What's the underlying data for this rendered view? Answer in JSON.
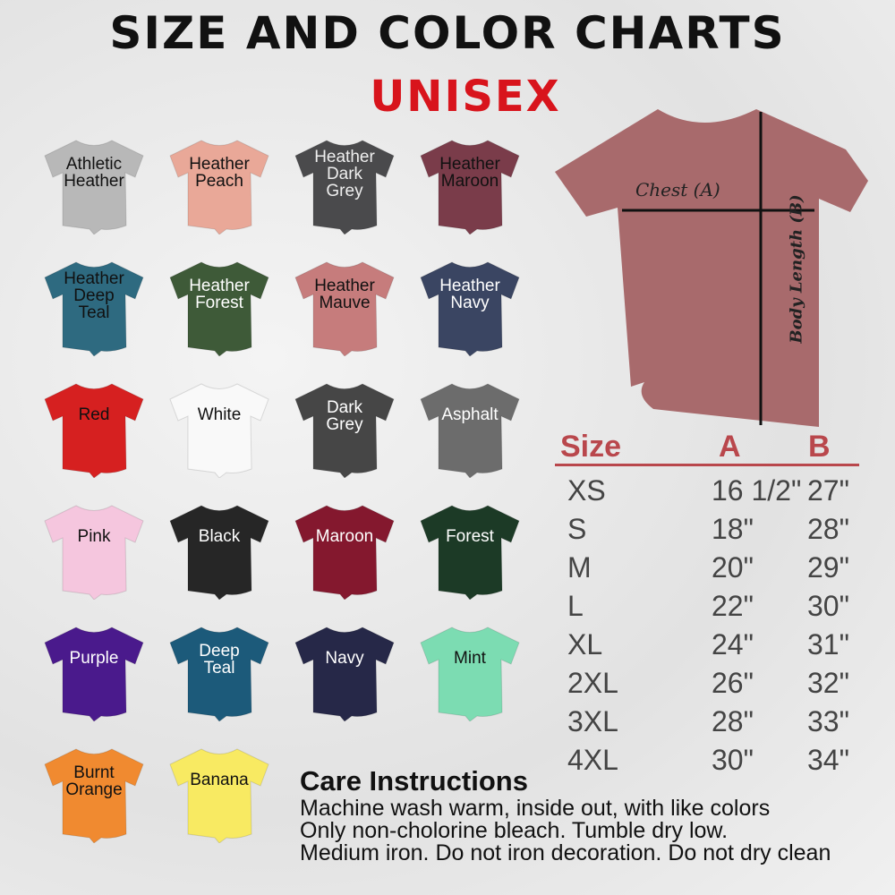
{
  "header": {
    "title": "SIZE AND COLOR CHARTS",
    "subtitle": "UNISEX"
  },
  "colors": [
    {
      "name": "Athletic\nHeather",
      "hex": "#b8b8b8",
      "text": "#111"
    },
    {
      "name": "Heather\nPeach",
      "hex": "#e9a898",
      "text": "#111"
    },
    {
      "name": "Heather\nDark\nGrey",
      "hex": "#4a4a4c",
      "text": "#eee"
    },
    {
      "name": "Heather\nMaroon",
      "hex": "#7a3c4a",
      "text": "#111"
    },
    {
      "name": "Heather\nDeep\nTeal",
      "hex": "#2e6a80",
      "text": "#111"
    },
    {
      "name": "Heather\nForest",
      "hex": "#3e5a38",
      "text": "#fff"
    },
    {
      "name": "Heather\nMauve",
      "hex": "#c67c7c",
      "text": "#111"
    },
    {
      "name": "Heather\nNavy",
      "hex": "#3a4562",
      "text": "#fff"
    },
    {
      "name": "Red",
      "hex": "#d62020",
      "text": "#111"
    },
    {
      "name": "White",
      "hex": "#f9f9f9",
      "text": "#111"
    },
    {
      "name": "Dark\nGrey",
      "hex": "#464646",
      "text": "#fff"
    },
    {
      "name": "Asphalt",
      "hex": "#6c6c6c",
      "text": "#fff"
    },
    {
      "name": "Pink",
      "hex": "#f5c6de",
      "text": "#111"
    },
    {
      "name": "Black",
      "hex": "#262626",
      "text": "#fff"
    },
    {
      "name": "Maroon",
      "hex": "#84182e",
      "text": "#fff"
    },
    {
      "name": "Forest",
      "hex": "#1c3a26",
      "text": "#fff"
    },
    {
      "name": "Purple",
      "hex": "#4a1a8c",
      "text": "#fff"
    },
    {
      "name": "Deep\nTeal",
      "hex": "#1c5a7a",
      "text": "#fff"
    },
    {
      "name": "Navy",
      "hex": "#262848",
      "text": "#fff"
    },
    {
      "name": "Mint",
      "hex": "#7cdcb2",
      "text": "#111"
    },
    {
      "name": "Burnt\nOrange",
      "hex": "#f08a30",
      "text": "#111"
    },
    {
      "name": "Banana",
      "hex": "#f8ea62",
      "text": "#111"
    }
  ],
  "diagram": {
    "shirt_color": "#a86a6c",
    "chest_label": "Chest (A)",
    "body_label": "Body Length (B)"
  },
  "size_table": {
    "headers": [
      "Size",
      "A",
      "B"
    ],
    "accent": "#b9474c",
    "rows": [
      [
        "XS",
        "16 1/2\"",
        "27\""
      ],
      [
        "S",
        "18\"",
        "28\""
      ],
      [
        "M",
        "20\"",
        "29\""
      ],
      [
        "L",
        "22\"",
        "30\""
      ],
      [
        "XL",
        "24\"",
        "31\""
      ],
      [
        "2XL",
        "26\"",
        "32\""
      ],
      [
        "3XL",
        "28\"",
        "33\""
      ],
      [
        "4XL",
        "30\"",
        "34\""
      ]
    ]
  },
  "care": {
    "title": "Care Instructions",
    "lines": [
      "Machine wash warm, inside out, with like colors",
      "Only non-cholorine bleach. Tumble dry low.",
      "Medium iron. Do not iron decoration. Do not dry clean"
    ]
  }
}
